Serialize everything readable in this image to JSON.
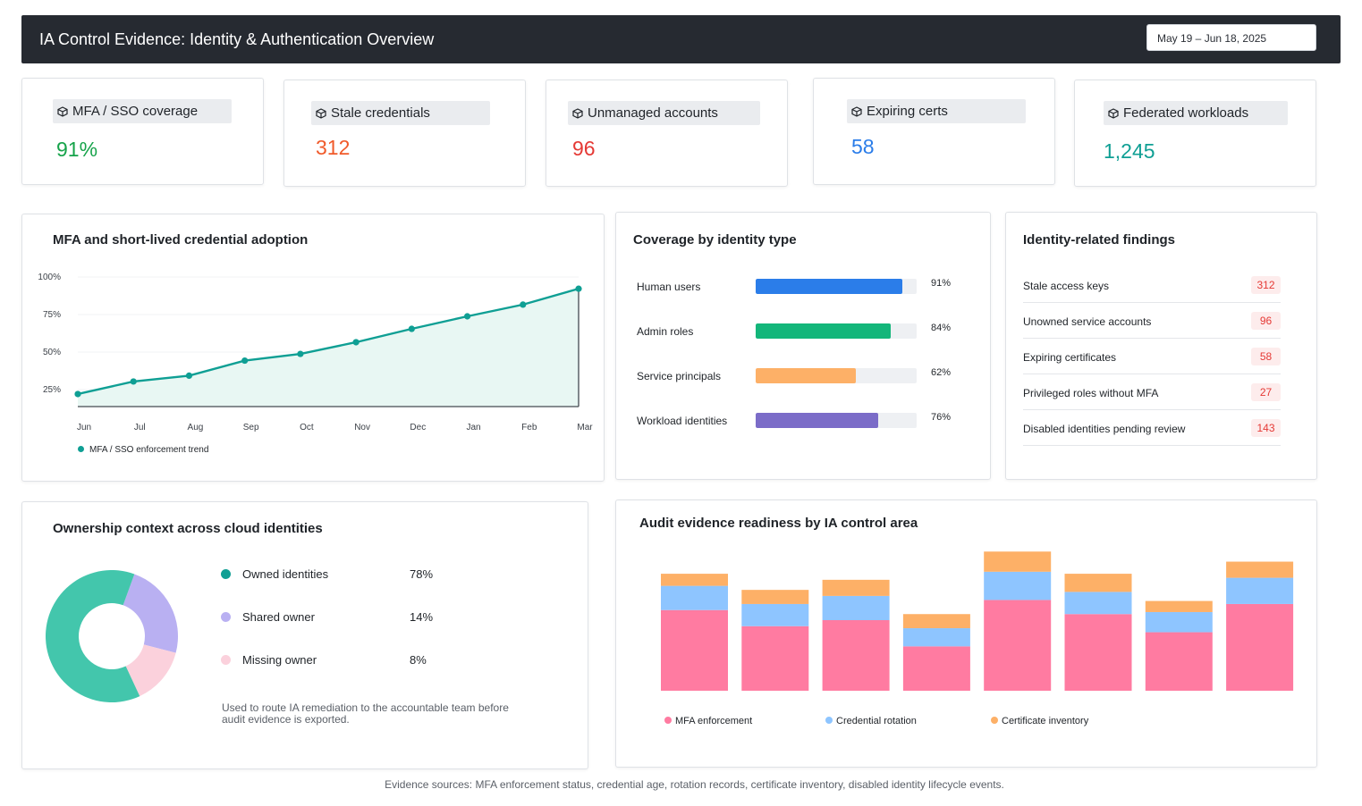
{
  "header": {
    "title": "IA Control Evidence: Identity & Authentication Overview",
    "date_range": "May 19 – Jun 18, 2025"
  },
  "kpis": [
    {
      "label": "MFA / SSO coverage",
      "value": "91%",
      "color": "#16a34a",
      "icon": "cube-icon"
    },
    {
      "label": "Stale credentials",
      "value": "312",
      "color": "#f05a2a",
      "icon": "cube-icon"
    },
    {
      "label": "Unmanaged accounts",
      "value": "96",
      "color": "#e53935",
      "icon": "cube-icon"
    },
    {
      "label": "Expiring certs",
      "value": "58",
      "color": "#2b7de9",
      "icon": "cube-icon"
    },
    {
      "label": "Federated workloads",
      "value": "1,245",
      "color": "#0f9f94",
      "icon": "cube-icon"
    }
  ],
  "adoption": {
    "title": "MFA and short-lived credential adoption",
    "legend": "MFA / SSO enforcement trend",
    "color": "#0f9f94"
  },
  "coverage": {
    "title": "Coverage by identity type",
    "rows": [
      {
        "label": "Human users",
        "value": 91,
        "pct": "91%",
        "color": "#2b7de9"
      },
      {
        "label": "Admin roles",
        "value": 84,
        "pct": "84%",
        "color": "#13b67a"
      },
      {
        "label": "Service principals",
        "value": 62,
        "pct": "62%",
        "color": "#fdb067"
      },
      {
        "label": "Workload identities",
        "value": 76,
        "pct": "76%",
        "color": "#7b6cc8"
      }
    ]
  },
  "findings": {
    "title": "Identity-related findings",
    "rows": [
      {
        "label": "Stale access keys",
        "count": "312"
      },
      {
        "label": "Unowned service accounts",
        "count": "96"
      },
      {
        "label": "Expiring certificates",
        "count": "58"
      },
      {
        "label": "Privileged roles without MFA",
        "count": "27"
      },
      {
        "label": "Disabled identities pending review",
        "count": "143"
      }
    ]
  },
  "ownership": {
    "title": "Ownership context across cloud identities",
    "items": [
      {
        "label": "Owned identities",
        "pct": "78%",
        "value": 78,
        "color": "#43c6ac"
      },
      {
        "label": "Shared owner",
        "pct": "14%",
        "value": 14,
        "color": "#b9b0f2"
      },
      {
        "label": "Missing owner",
        "pct": "8%",
        "value": 8,
        "color": "#fbd1dc"
      }
    ],
    "note": "Used to route IA remediation to the accountable team before audit evidence is exported."
  },
  "audit": {
    "title": "Audit evidence readiness by IA control area",
    "legend": [
      {
        "label": "MFA enforcement",
        "color": "#ff7ba1"
      },
      {
        "label": "Credential rotation",
        "color": "#8ec5ff"
      },
      {
        "label": "Certificate inventory",
        "color": "#fdb067"
      }
    ]
  },
  "footer": "Evidence sources: MFA enforcement status, credential age, rotation records, certificate inventory, disabled identity lifecycle events.",
  "chart_data": [
    {
      "type": "line",
      "title": "MFA and short-lived credential adoption",
      "x": [
        "Jun",
        "Jul",
        "Aug",
        "Sep",
        "Oct",
        "Nov",
        "Dec",
        "Jan",
        "Feb",
        "Mar"
      ],
      "series": [
        {
          "name": "MFA / SSO enforcement trend",
          "values": [
            15,
            30,
            37,
            55,
            63,
            77,
            93,
            108,
            122,
            141
          ]
        }
      ],
      "y_ticks": [
        "25%",
        "50%",
        "75%",
        "100%"
      ],
      "ylim": [
        0,
        170
      ],
      "area_fill": true
    },
    {
      "type": "bar",
      "title": "Coverage by identity type",
      "categories": [
        "Human users",
        "Admin roles",
        "Service principals",
        "Workload identities"
      ],
      "values": [
        91,
        84,
        62,
        76
      ],
      "orientation": "horizontal",
      "xlim": [
        0,
        100
      ]
    },
    {
      "type": "pie",
      "title": "Ownership context across cloud identities",
      "categories": [
        "Owned identities",
        "Shared owner",
        "Missing owner"
      ],
      "values": [
        78,
        14,
        8
      ],
      "donut": true
    },
    {
      "type": "bar",
      "stacked": true,
      "title": "Audit evidence readiness by IA control area",
      "categories": [
        "1",
        "2",
        "3",
        "4",
        "5",
        "6",
        "7",
        "8"
      ],
      "series": [
        {
          "name": "MFA enforcement",
          "values": [
            80,
            64,
            70,
            44,
            90,
            76,
            58,
            86
          ]
        },
        {
          "name": "Credential rotation",
          "values": [
            24,
            22,
            24,
            18,
            28,
            22,
            20,
            26
          ]
        },
        {
          "name": "Certificate inventory",
          "values": [
            12,
            14,
            16,
            14,
            20,
            18,
            11,
            16
          ]
        }
      ],
      "ylim": [
        0,
        140
      ]
    }
  ]
}
